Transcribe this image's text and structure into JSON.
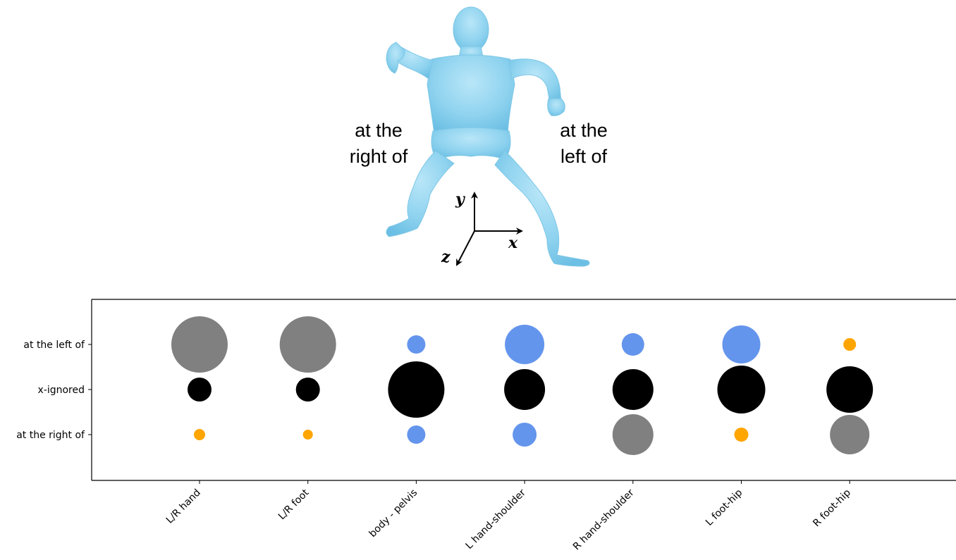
{
  "illustration": {
    "left_annotation": [
      "at the",
      "right of"
    ],
    "right_annotation": [
      "at the",
      "left of"
    ],
    "axes": {
      "x": "x",
      "y": "y",
      "z": "z"
    },
    "figure_color": "#8fd3ef"
  },
  "chart_data": {
    "type": "scatter",
    "categories": [
      "L/R hand",
      "L/R foot",
      "body - pelvis",
      "L hand-shoulder",
      "R hand-shoulder",
      "L foot-hip",
      "R foot-hip"
    ],
    "y_categories": [
      "at the right of",
      "x-ignored",
      "at the left of"
    ],
    "colors": {
      "gray": "#808080",
      "black": "#000000",
      "blue": "#6495ed",
      "orange": "#ffa500"
    },
    "points": [
      {
        "x": "L/R hand",
        "y": "at the left of",
        "size": 40,
        "color": "#808080"
      },
      {
        "x": "L/R hand",
        "y": "x-ignored",
        "size": 17,
        "color": "#000000"
      },
      {
        "x": "L/R hand",
        "y": "at the right of",
        "size": 8,
        "color": "#ffa500"
      },
      {
        "x": "L/R foot",
        "y": "at the left of",
        "size": 40,
        "color": "#808080"
      },
      {
        "x": "L/R foot",
        "y": "x-ignored",
        "size": 17,
        "color": "#000000"
      },
      {
        "x": "L/R foot",
        "y": "at the right of",
        "size": 7,
        "color": "#ffa500"
      },
      {
        "x": "body - pelvis",
        "y": "at the left of",
        "size": 13,
        "color": "#6495ed"
      },
      {
        "x": "body - pelvis",
        "y": "x-ignored",
        "size": 40,
        "color": "#000000"
      },
      {
        "x": "body - pelvis",
        "y": "at the right of",
        "size": 13,
        "color": "#6495ed"
      },
      {
        "x": "L hand-shoulder",
        "y": "at the left of",
        "size": 28,
        "color": "#6495ed"
      },
      {
        "x": "L hand-shoulder",
        "y": "x-ignored",
        "size": 29,
        "color": "#000000"
      },
      {
        "x": "L hand-shoulder",
        "y": "at the right of",
        "size": 17,
        "color": "#6495ed"
      },
      {
        "x": "R hand-shoulder",
        "y": "at the left of",
        "size": 16,
        "color": "#6495ed"
      },
      {
        "x": "R hand-shoulder",
        "y": "x-ignored",
        "size": 29,
        "color": "#000000"
      },
      {
        "x": "R hand-shoulder",
        "y": "at the right of",
        "size": 29,
        "color": "#808080"
      },
      {
        "x": "L foot-hip",
        "y": "at the left of",
        "size": 27,
        "color": "#6495ed"
      },
      {
        "x": "L foot-hip",
        "y": "x-ignored",
        "size": 34,
        "color": "#000000"
      },
      {
        "x": "L foot-hip",
        "y": "at the right of",
        "size": 10,
        "color": "#ffa500"
      },
      {
        "x": "R foot-hip",
        "y": "at the left of",
        "size": 9,
        "color": "#ffa500"
      },
      {
        "x": "R foot-hip",
        "y": "x-ignored",
        "size": 33,
        "color": "#000000"
      },
      {
        "x": "R foot-hip",
        "y": "at the right of",
        "size": 28,
        "color": "#808080"
      }
    ],
    "grid": false,
    "legend": "none"
  }
}
